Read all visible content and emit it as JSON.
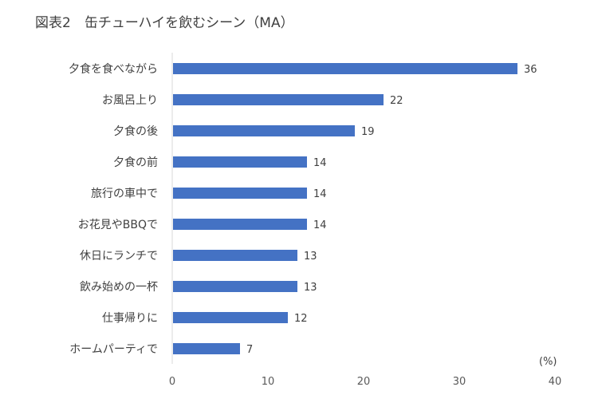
{
  "chart_data": {
    "type": "bar",
    "orientation": "horizontal",
    "title": "図表2　缶チューハイを飲むシーン（MA）",
    "unit_label": "(%)",
    "categories": [
      "夕食を食べながら",
      "お風呂上り",
      "夕食の後",
      "夕食の前",
      "旅行の車中で",
      "お花見やBBQで",
      "休日にランチで",
      "飲み始めの一杯",
      "仕事帰りに",
      "ホームパーティで"
    ],
    "values": [
      36,
      22,
      19,
      14,
      14,
      14,
      13,
      13,
      12,
      7
    ],
    "xlim": [
      0,
      40
    ],
    "xticks": [
      0,
      10,
      20,
      30,
      40
    ],
    "grid": false,
    "bar_color": "#4472C4"
  }
}
